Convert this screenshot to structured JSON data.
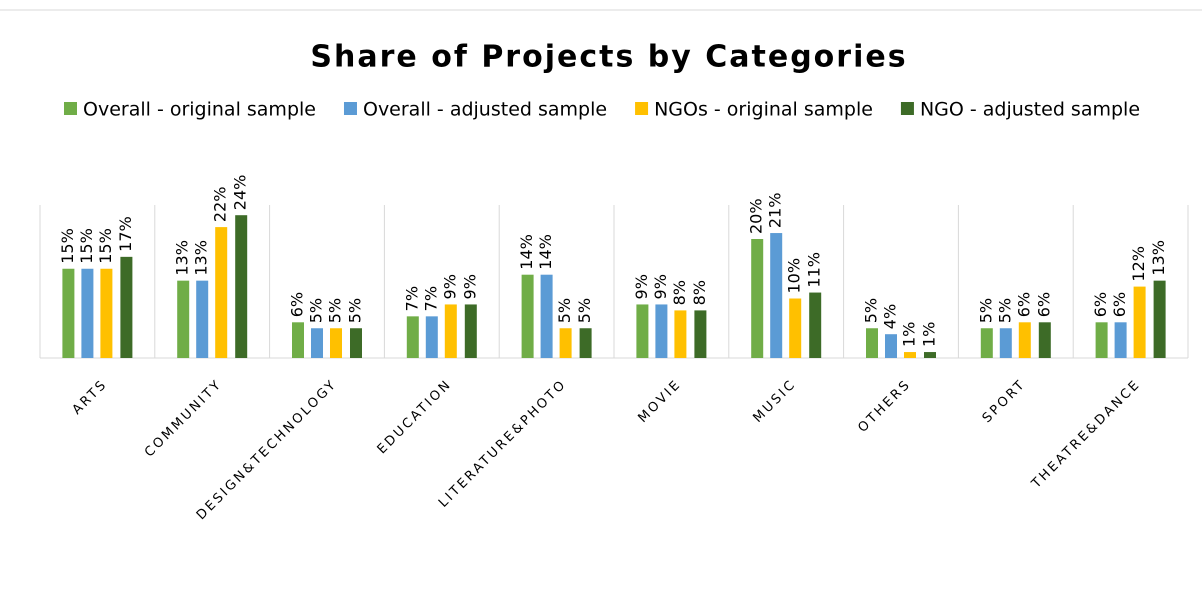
{
  "chart_data": {
    "type": "bar",
    "title": "Share of Projects by Categories",
    "legend": "top",
    "categories": [
      "ARTS",
      "COMMUNITY",
      "DESIGN&TECHNOLOGY",
      "EDUCATION",
      "LITERATURE&PHOTO",
      "MOVIE",
      "MUSIC",
      "OTHERS",
      "SPORT",
      "THEATRE&DANCE"
    ],
    "series": [
      {
        "name": "Overall - original sample",
        "color": "#70ad47",
        "values": [
          15,
          13,
          6,
          7,
          14,
          9,
          20,
          5,
          5,
          6
        ],
        "value_labels": [
          "15%",
          "13%",
          "6%",
          "7%",
          "14%",
          "9%",
          "20%",
          "5%",
          "5%",
          "6%"
        ]
      },
      {
        "name": "Overall - adjusted sample",
        "color": "#5b9bd5",
        "values": [
          15,
          13,
          5,
          7,
          14,
          9,
          21,
          4,
          5,
          6
        ],
        "value_labels": [
          "15%",
          "13%",
          "5%",
          "7%",
          "14%",
          "9%",
          "21%",
          "4%",
          "5%",
          "6%"
        ]
      },
      {
        "name": "NGOs - original sample",
        "color": "#ffc000",
        "values": [
          15,
          22,
          5,
          9,
          5,
          8,
          10,
          1,
          6,
          12
        ],
        "value_labels": [
          "15%",
          "22%",
          "5%",
          "9%",
          "5%",
          "8%",
          "10%",
          "1%",
          "6%",
          "12%"
        ]
      },
      {
        "name": "NGO - adjusted sample",
        "color": "#3d6b27",
        "values": [
          17,
          24,
          5,
          9,
          5,
          8,
          11,
          1,
          6,
          13
        ],
        "value_labels": [
          "17%",
          "24%",
          "5%",
          "9%",
          "5%",
          "8%",
          "11%",
          "1%",
          "6%",
          "13%"
        ]
      }
    ]
  }
}
